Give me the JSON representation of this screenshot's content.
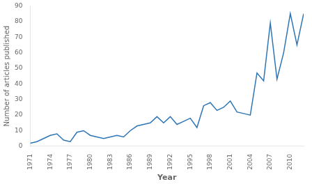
{
  "chart_data": {
    "type": "line",
    "x": [
      1971,
      1972,
      1973,
      1974,
      1975,
      1976,
      1977,
      1978,
      1979,
      1980,
      1981,
      1982,
      1983,
      1984,
      1985,
      1986,
      1987,
      1988,
      1989,
      1990,
      1991,
      1992,
      1993,
      1994,
      1995,
      1996,
      1997,
      1998,
      1999,
      2000,
      2001,
      2002,
      2003,
      2004,
      2005,
      2006,
      2007,
      2008,
      2009,
      2010,
      2011,
      2012
    ],
    "values": [
      2,
      3,
      5,
      7,
      8,
      4,
      3,
      9,
      10,
      7,
      6,
      5,
      6,
      7,
      6,
      10,
      13,
      14,
      15,
      19,
      15,
      19,
      14,
      16,
      18,
      12,
      26,
      28,
      23,
      25,
      29,
      22,
      21,
      20,
      47,
      42,
      79,
      43,
      60,
      85,
      65,
      85
    ],
    "xlim": [
      1971,
      2012
    ],
    "ylim": [
      0,
      90
    ],
    "xticks": [
      1971,
      1974,
      1977,
      1980,
      1983,
      1986,
      1989,
      1992,
      1995,
      1998,
      2001,
      2004,
      2007,
      2010
    ],
    "yticks": [
      0,
      10,
      20,
      30,
      40,
      50,
      60,
      70,
      80,
      90
    ],
    "xlabel": "Year",
    "ylabel": "Number of articles published",
    "color": "#2e75b6",
    "grid": false
  }
}
